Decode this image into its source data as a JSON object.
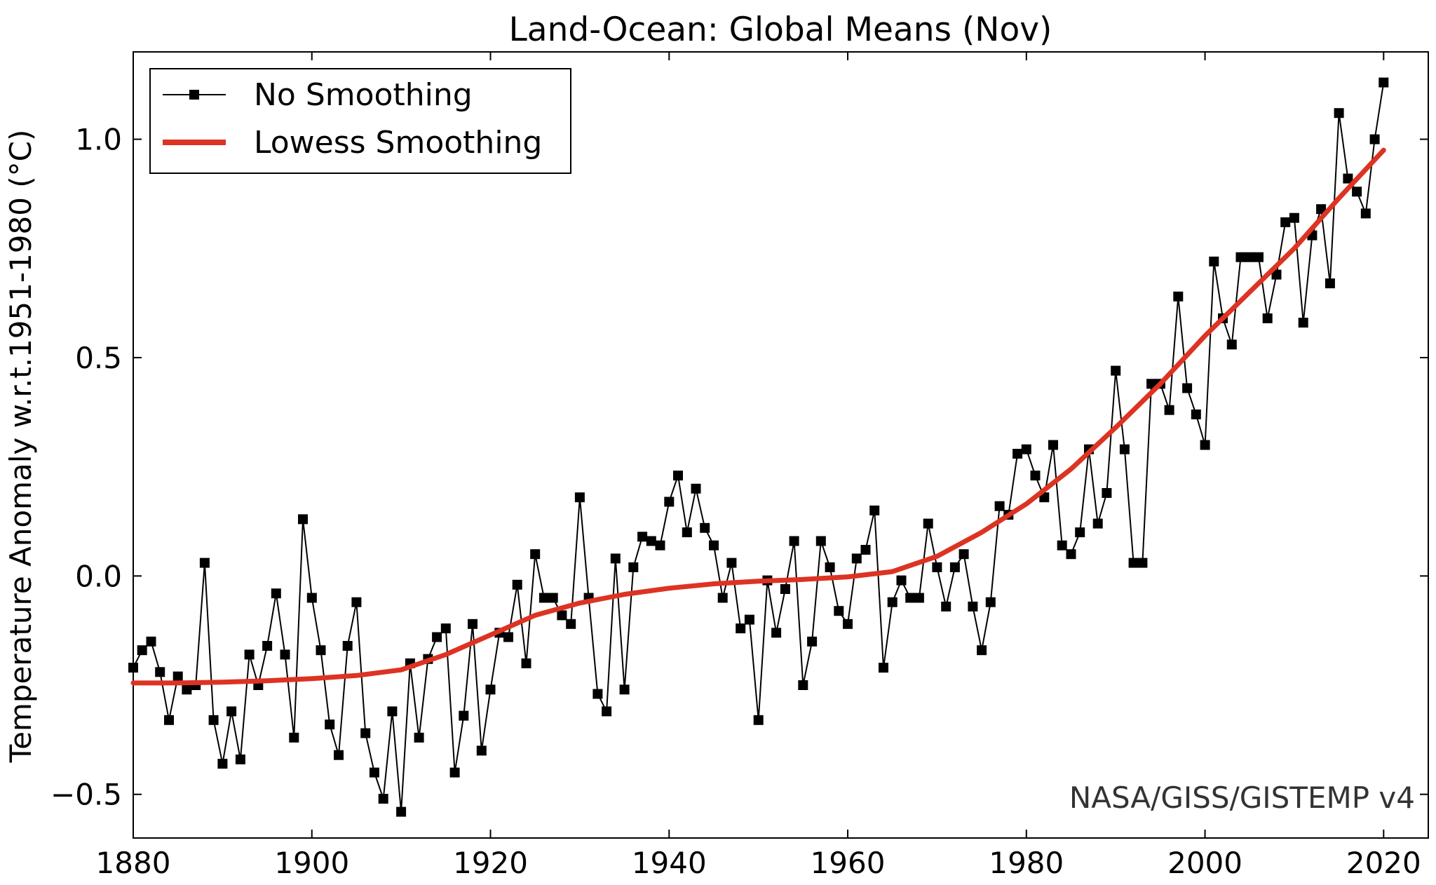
{
  "chart_data": {
    "type": "line",
    "title": "Land-Ocean: Global Means (Nov)",
    "xlabel": "",
    "ylabel": "Temperature Anomaly w.r.t.1951-1980 (°C)",
    "xlim": [
      1880,
      2025
    ],
    "ylim": [
      -0.6,
      1.2
    ],
    "xticks": [
      1880,
      1900,
      1920,
      1940,
      1960,
      1980,
      2000,
      2020
    ],
    "yticks": [
      -0.5,
      0.0,
      0.5,
      1.0
    ],
    "ytick_labels": [
      "−0.5",
      "0.0",
      "0.5",
      "1.0"
    ],
    "grid": false,
    "legend_position": "top-left",
    "annotation": "NASA/GISS/GISTEMP v4",
    "series": [
      {
        "name": "No Smoothing",
        "color": "#000000",
        "marker": "square",
        "x": [
          1880,
          1881,
          1882,
          1883,
          1884,
          1885,
          1886,
          1887,
          1888,
          1889,
          1890,
          1891,
          1892,
          1893,
          1894,
          1895,
          1896,
          1897,
          1898,
          1899,
          1900,
          1901,
          1902,
          1903,
          1904,
          1905,
          1906,
          1907,
          1908,
          1909,
          1910,
          1911,
          1912,
          1913,
          1914,
          1915,
          1916,
          1917,
          1918,
          1919,
          1920,
          1921,
          1922,
          1923,
          1924,
          1925,
          1926,
          1927,
          1928,
          1929,
          1930,
          1931,
          1932,
          1933,
          1934,
          1935,
          1936,
          1937,
          1938,
          1939,
          1940,
          1941,
          1942,
          1943,
          1944,
          1945,
          1946,
          1947,
          1948,
          1949,
          1950,
          1951,
          1952,
          1953,
          1954,
          1955,
          1956,
          1957,
          1958,
          1959,
          1960,
          1961,
          1962,
          1963,
          1964,
          1965,
          1966,
          1967,
          1968,
          1969,
          1970,
          1971,
          1972,
          1973,
          1974,
          1975,
          1976,
          1977,
          1978,
          1979,
          1980,
          1981,
          1982,
          1983,
          1984,
          1985,
          1986,
          1987,
          1988,
          1989,
          1990,
          1991,
          1992,
          1993,
          1994,
          1995,
          1996,
          1997,
          1998,
          1999,
          2000,
          2001,
          2002,
          2003,
          2004,
          2005,
          2006,
          2007,
          2008,
          2009,
          2010,
          2011,
          2012,
          2013,
          2014,
          2015,
          2016,
          2017,
          2018,
          2019,
          2020
        ],
        "y": [
          -0.21,
          -0.17,
          -0.15,
          -0.22,
          -0.33,
          -0.23,
          -0.26,
          -0.25,
          0.03,
          -0.33,
          -0.43,
          -0.31,
          -0.42,
          -0.18,
          -0.25,
          -0.16,
          -0.04,
          -0.18,
          -0.37,
          0.13,
          -0.05,
          -0.17,
          -0.34,
          -0.41,
          -0.16,
          -0.06,
          -0.36,
          -0.45,
          -0.51,
          -0.31,
          -0.54,
          -0.2,
          -0.37,
          -0.19,
          -0.14,
          -0.12,
          -0.45,
          -0.32,
          -0.11,
          -0.4,
          -0.26,
          -0.13,
          -0.14,
          -0.02,
          -0.2,
          0.05,
          -0.05,
          -0.05,
          -0.09,
          -0.11,
          0.18,
          -0.05,
          -0.27,
          -0.31,
          0.04,
          -0.26,
          0.02,
          0.09,
          0.08,
          0.07,
          0.17,
          0.23,
          0.1,
          0.2,
          0.11,
          0.07,
          -0.05,
          0.03,
          -0.12,
          -0.1,
          -0.33,
          -0.01,
          -0.13,
          -0.03,
          0.08,
          -0.25,
          -0.15,
          0.08,
          0.02,
          -0.08,
          -0.11,
          0.04,
          0.06,
          0.15,
          -0.21,
          -0.06,
          -0.01,
          -0.05,
          -0.05,
          0.12,
          0.02,
          -0.07,
          0.02,
          0.05,
          -0.07,
          -0.17,
          -0.06,
          0.16,
          0.14,
          0.28,
          0.29,
          0.23,
          0.18,
          0.3,
          0.07,
          0.05,
          0.1,
          0.29,
          0.12,
          0.19,
          0.47,
          0.29,
          0.03,
          0.03,
          0.44,
          0.44,
          0.38,
          0.64,
          0.43,
          0.37,
          0.3,
          0.72,
          0.59,
          0.53,
          0.73,
          0.73,
          0.73,
          0.59,
          0.69,
          0.81,
          0.82,
          0.58,
          0.78,
          0.84,
          0.67,
          1.06,
          0.91,
          0.88,
          0.83,
          1.0,
          1.13
        ]
      },
      {
        "name": "Lowess Smoothing",
        "color": "#dd3322",
        "marker": "none",
        "x": [
          1880,
          1885,
          1890,
          1895,
          1900,
          1905,
          1910,
          1915,
          1920,
          1925,
          1930,
          1935,
          1940,
          1945,
          1950,
          1955,
          1960,
          1965,
          1970,
          1975,
          1980,
          1985,
          1990,
          1995,
          2000,
          2005,
          2010,
          2015,
          2020
        ],
        "y": [
          -0.245,
          -0.245,
          -0.243,
          -0.24,
          -0.235,
          -0.228,
          -0.215,
          -0.18,
          -0.135,
          -0.09,
          -0.062,
          -0.042,
          -0.028,
          -0.018,
          -0.012,
          -0.008,
          -0.002,
          0.01,
          0.045,
          0.1,
          0.165,
          0.245,
          0.34,
          0.44,
          0.55,
          0.65,
          0.75,
          0.865,
          0.975
        ]
      }
    ]
  }
}
